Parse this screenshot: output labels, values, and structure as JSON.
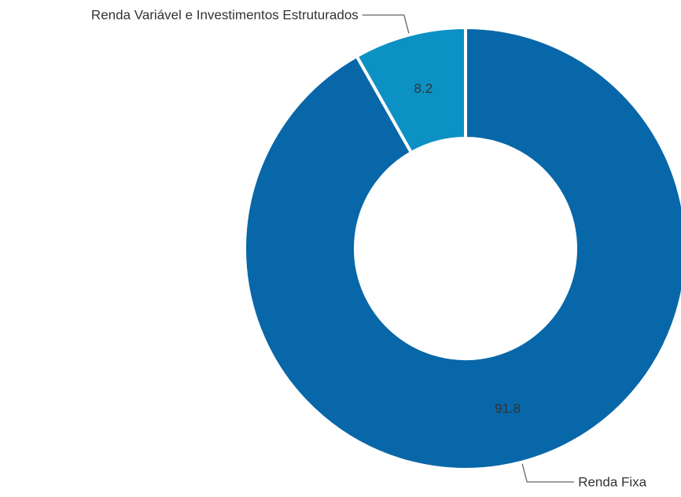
{
  "chart_data": {
    "type": "pie",
    "donut": true,
    "categories": [
      "Renda Variável e Investimentos Estruturados",
      "Renda Fixa"
    ],
    "values": [
      8.2,
      91.8
    ],
    "value_labels": [
      "8.2",
      "91.8"
    ],
    "colors": [
      "#0b91c4",
      "#0867a8"
    ],
    "legend": "none",
    "title": ""
  }
}
